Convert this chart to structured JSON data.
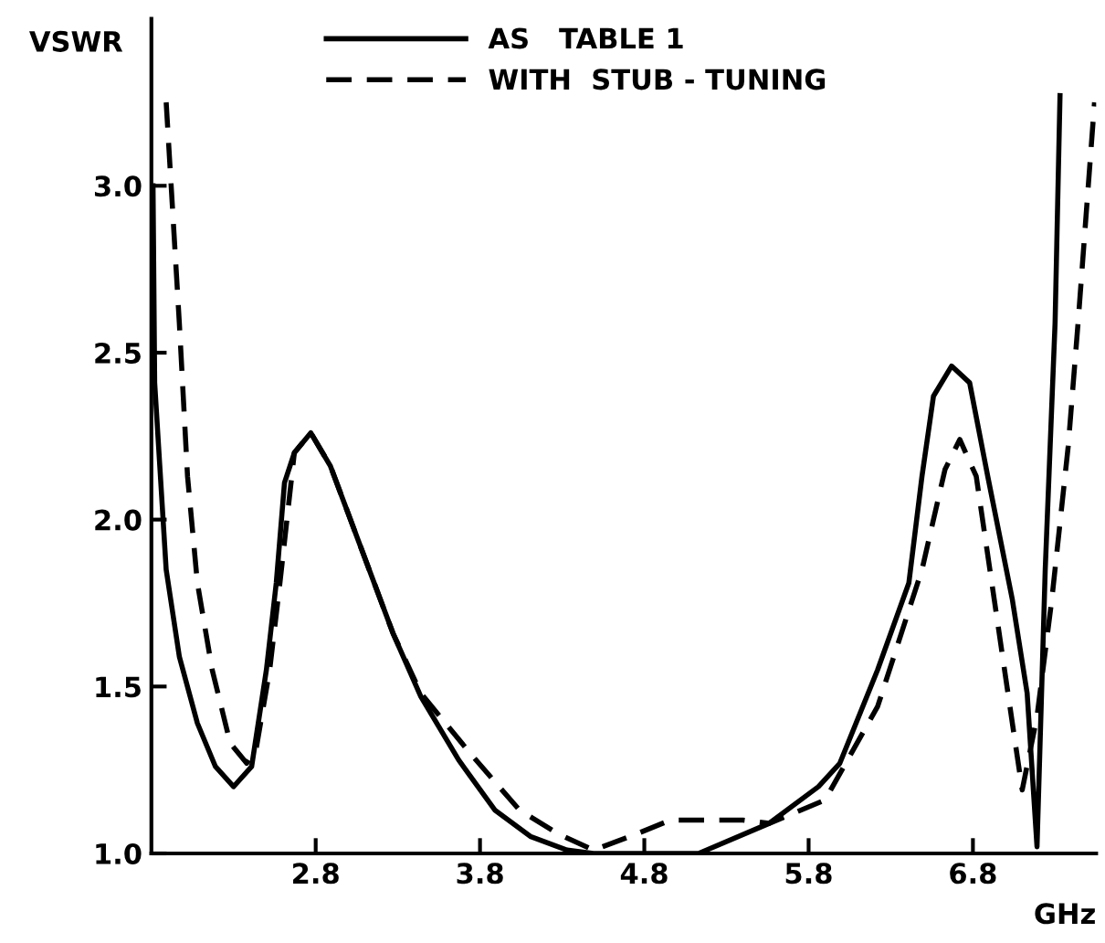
{
  "chart_data": {
    "type": "line",
    "xlabel": "GHz",
    "ylabel": "VSWR",
    "xlim": [
      1.8,
      7.55
    ],
    "ylim": [
      1.0,
      3.5
    ],
    "xticks": [
      2.8,
      3.8,
      4.8,
      5.8,
      6.8
    ],
    "yticks": [
      {
        "value": 1.0,
        "label": "1.0"
      },
      {
        "value": 1.5,
        "label": "1.5"
      },
      {
        "value": 2.0,
        "label": "2.0"
      },
      {
        "value": 2.5,
        "label": "2.5"
      },
      {
        "value": 3.0,
        "label": "3.0"
      }
    ],
    "grid": false,
    "legend": "top",
    "marker": "none",
    "series": [
      {
        "name": "AS   TABLE 1",
        "color": "#000000",
        "line_style": "solid",
        "x": [
          1.81,
          1.82,
          1.89,
          1.97,
          2.08,
          2.19,
          2.3,
          2.41,
          2.5,
          2.56,
          2.61,
          2.67,
          2.77,
          2.89,
          3.08,
          3.27,
          3.44,
          3.67,
          3.89,
          4.11,
          4.33,
          4.49,
          4.8,
          5.13,
          5.56,
          5.86,
          5.99,
          6.22,
          6.41,
          6.49,
          6.56,
          6.67,
          6.78,
          6.89,
          7.04,
          7.13,
          7.19,
          7.24,
          7.3,
          7.33
        ],
        "values": [
          3.0,
          2.41,
          1.85,
          1.59,
          1.39,
          1.26,
          1.2,
          1.26,
          1.55,
          1.81,
          2.11,
          2.2,
          2.26,
          2.16,
          1.91,
          1.66,
          1.47,
          1.28,
          1.13,
          1.05,
          1.01,
          1.0,
          1.0,
          1.0,
          1.09,
          1.2,
          1.27,
          1.55,
          1.81,
          2.13,
          2.37,
          2.46,
          2.41,
          2.13,
          1.76,
          1.48,
          1.02,
          1.85,
          2.59,
          3.27
        ]
      },
      {
        "name": "WITH  STUB - TUNING",
        "color": "#000000",
        "line_style": "dashed",
        "x": [
          1.89,
          1.97,
          2.02,
          2.08,
          2.17,
          2.28,
          2.38,
          2.44,
          2.52,
          2.58,
          2.67,
          2.77,
          2.89,
          3.08,
          3.27,
          3.44,
          3.74,
          4.04,
          4.27,
          4.49,
          4.71,
          4.96,
          5.4,
          5.56,
          5.9,
          6.22,
          6.49,
          6.63,
          6.72,
          6.82,
          6.93,
          7.04,
          7.1,
          7.19,
          7.28,
          7.38,
          7.44,
          7.54
        ],
        "values": [
          3.25,
          2.59,
          2.13,
          1.81,
          1.55,
          1.33,
          1.27,
          1.32,
          1.55,
          1.8,
          2.2,
          2.26,
          2.16,
          1.91,
          1.66,
          1.48,
          1.3,
          1.13,
          1.06,
          1.01,
          1.05,
          1.1,
          1.1,
          1.09,
          1.16,
          1.44,
          1.85,
          2.15,
          2.24,
          2.13,
          1.76,
          1.39,
          1.19,
          1.41,
          1.76,
          2.22,
          2.59,
          3.25
        ]
      }
    ]
  }
}
